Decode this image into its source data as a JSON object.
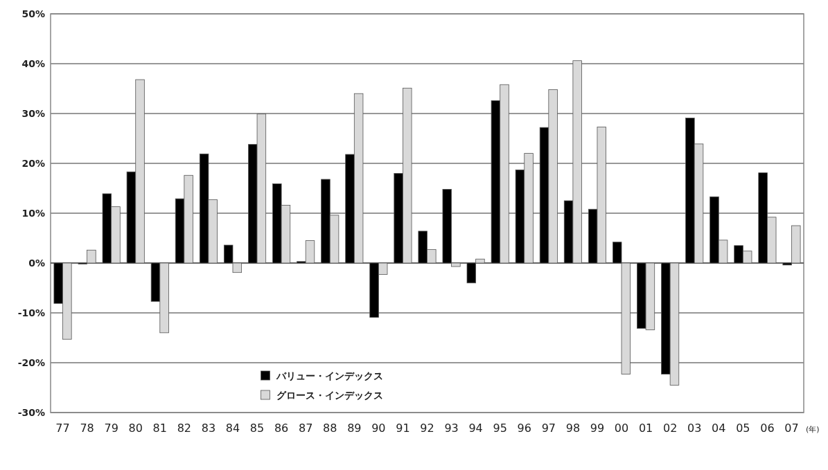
{
  "chart_data": {
    "type": "bar",
    "categories": [
      "77",
      "78",
      "79",
      "80",
      "81",
      "82",
      "83",
      "84",
      "85",
      "86",
      "87",
      "88",
      "89",
      "90",
      "91",
      "92",
      "93",
      "94",
      "95",
      "96",
      "97",
      "98",
      "99",
      "00",
      "01",
      "02",
      "03",
      "04",
      "05",
      "06",
      "07"
    ],
    "series": [
      {
        "name": "バリュー・インデックス",
        "color": "#000000",
        "values": [
          -8.1,
          -0.2,
          13.9,
          18.3,
          -7.7,
          12.9,
          21.9,
          3.6,
          23.8,
          15.9,
          0.3,
          16.8,
          21.8,
          -10.9,
          18.0,
          6.4,
          14.8,
          -4.0,
          32.6,
          18.7,
          27.2,
          12.5,
          10.8,
          4.2,
          -13.1,
          -22.3,
          29.1,
          13.3,
          3.5,
          18.1,
          -0.4
        ]
      },
      {
        "name": "グロース・インデックス",
        "color": "#d9d9d9",
        "values": [
          -15.3,
          2.6,
          11.3,
          36.8,
          -14.0,
          17.6,
          12.7,
          -1.9,
          29.9,
          11.6,
          4.5,
          9.6,
          34.0,
          -2.3,
          35.1,
          2.7,
          -0.7,
          0.8,
          35.8,
          22.0,
          34.8,
          40.6,
          27.3,
          -22.3,
          -13.4,
          -24.5,
          23.9,
          4.6,
          2.4,
          9.2,
          7.5
        ]
      }
    ],
    "ylim": [
      -30,
      50
    ],
    "yticks": [
      {
        "value": -30,
        "label": "-30%"
      },
      {
        "value": -20,
        "label": "-20%"
      },
      {
        "value": -10,
        "label": "-10%"
      },
      {
        "value": 0,
        "label": "0%"
      },
      {
        "value": 10,
        "label": "10%"
      },
      {
        "value": 20,
        "label": "20%"
      },
      {
        "value": 30,
        "label": "30%"
      },
      {
        "value": 40,
        "label": "40%"
      },
      {
        "value": 50,
        "label": "50%"
      }
    ],
    "grid": "y",
    "legend": "bottom",
    "annotations": [
      "(年)"
    ]
  }
}
